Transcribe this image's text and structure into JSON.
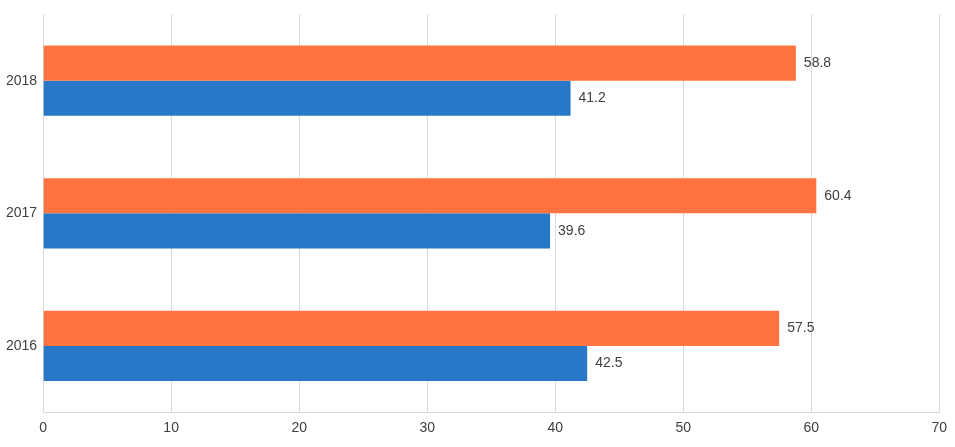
{
  "chart_data": {
    "type": "bar",
    "orientation": "horizontal",
    "categories": [
      "2018",
      "2017",
      "2016"
    ],
    "series": [
      {
        "color": "#ff7440",
        "values": [
          58.8,
          60.4,
          57.5
        ]
      },
      {
        "color": "#2878c8",
        "values": [
          41.2,
          39.6,
          42.5
        ]
      }
    ],
    "xlim": [
      0,
      70
    ],
    "xticks": [
      0,
      10,
      20,
      30,
      40,
      50,
      60,
      70
    ],
    "grid": true,
    "data_labels": true
  }
}
